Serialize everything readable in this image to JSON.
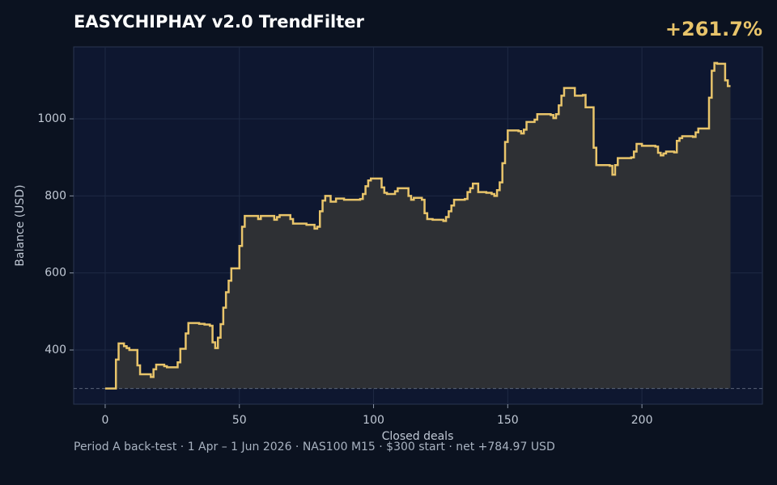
{
  "chart_data": {
    "type": "step-line",
    "title": "EASYCHIPHAY v2.0 TrendFilter",
    "annotation": "+261.7%",
    "footer": "Period A back-test  ·  1 Apr – 1 Jun 2026  ·  NAS100 M15  ·  $300 start  ·  net +784.97 USD",
    "x_label": "Closed deals",
    "y_label": "Balance (USD)",
    "baseline": 300,
    "color": "#e8c46a",
    "fill_color": "#2e3034",
    "grid": true,
    "xlim": [
      -11.75,
      244.9
    ],
    "ylim": [
      259.4,
      1186.8
    ],
    "xticks": [
      0,
      50,
      100,
      150,
      200
    ],
    "yticks": [
      400,
      600,
      800,
      1000
    ],
    "x": [
      0,
      4,
      5,
      7,
      8,
      9,
      12,
      13,
      17,
      18,
      19,
      22,
      23,
      27,
      28,
      30,
      31,
      35,
      37,
      39,
      40,
      41,
      42,
      43,
      44,
      45,
      46,
      47,
      50,
      51,
      52,
      57,
      58,
      63,
      64,
      65,
      69,
      70,
      75,
      78,
      79,
      80,
      81,
      82,
      84,
      86,
      89,
      95,
      96,
      97,
      98,
      99,
      103,
      104,
      105,
      108,
      109,
      113,
      114,
      115,
      118,
      119,
      120,
      122,
      126,
      127,
      128,
      129,
      130,
      134,
      135,
      136,
      137,
      139,
      142,
      144,
      145,
      146,
      147,
      148,
      149,
      150,
      154,
      155,
      156,
      157,
      160,
      161,
      166,
      167,
      168,
      169,
      170,
      171,
      175,
      178,
      179,
      182,
      183,
      188,
      189,
      190,
      191,
      196,
      197,
      198,
      200,
      205,
      206,
      207,
      208,
      209,
      212,
      213,
      214,
      215,
      219,
      220,
      221,
      225,
      226,
      227,
      228,
      231,
      232,
      233
    ],
    "values": [
      300,
      375,
      417,
      410,
      405,
      400,
      360,
      337,
      330,
      350,
      362,
      358,
      355,
      368,
      403,
      443,
      470,
      468,
      466,
      463,
      420,
      405,
      432,
      467,
      510,
      550,
      580,
      612,
      670,
      720,
      748,
      740,
      748,
      738,
      745,
      750,
      740,
      728,
      725,
      715,
      720,
      760,
      788,
      800,
      785,
      793,
      790,
      792,
      805,
      825,
      840,
      845,
      822,
      808,
      805,
      812,
      820,
      800,
      790,
      795,
      790,
      755,
      740,
      738,
      735,
      745,
      760,
      775,
      790,
      792,
      810,
      820,
      832,
      810,
      808,
      805,
      800,
      815,
      835,
      885,
      940,
      970,
      968,
      962,
      972,
      992,
      998,
      1012,
      1010,
      1002,
      1012,
      1035,
      1060,
      1080,
      1060,
      1062,
      1030,
      925,
      880,
      878,
      855,
      880,
      898,
      900,
      915,
      935,
      930,
      928,
      912,
      905,
      910,
      915,
      913,
      943,
      950,
      955,
      953,
      965,
      975,
      1055,
      1125,
      1145,
      1143,
      1100,
      1085,
      1085
    ]
  }
}
